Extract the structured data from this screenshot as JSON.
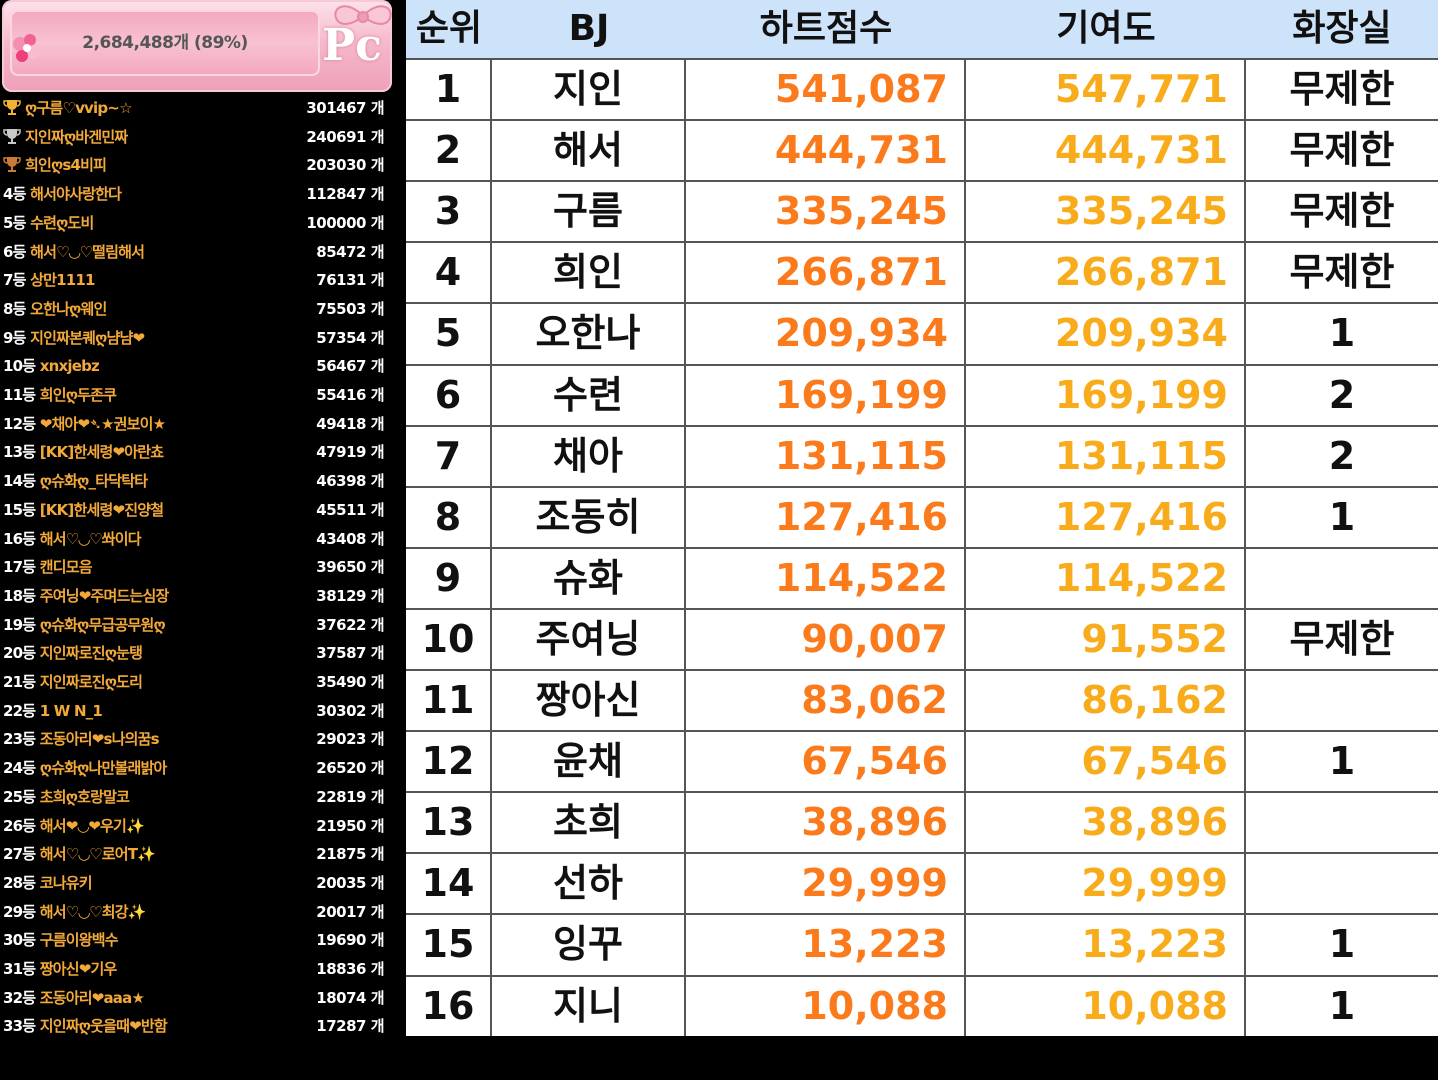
{
  "progress": {
    "text": "2,684,488개 (89%)"
  },
  "logo": {
    "text": "Pc"
  },
  "colors": {
    "heart_score": "#fa7a1c",
    "contribution": "#f8ac1c",
    "header_bg": "#cde3f9",
    "name_gold": "#f3a93a"
  },
  "ranking": [
    {
      "label": "",
      "name": "ღ구름♡vvip~☆",
      "count": "301467 개",
      "trophy": "gold"
    },
    {
      "label": "",
      "name": "지인짜ღ바겐민짜",
      "count": "240691 개",
      "trophy": "silver"
    },
    {
      "label": "",
      "name": "희인ღs4비피",
      "count": "203030 개",
      "trophy": "bronze"
    },
    {
      "label": "4등",
      "name": "해서야사랑한다",
      "count": "112847 개"
    },
    {
      "label": "5등",
      "name": "수련ღ도비",
      "count": "100000 개"
    },
    {
      "label": "6등",
      "name": "해서♡◡♡떨림해서",
      "count": "85472 개"
    },
    {
      "label": "7등",
      "name": "상만1111",
      "count": "76131 개"
    },
    {
      "label": "8등",
      "name": "오한나ღ웨인",
      "count": "75503 개"
    },
    {
      "label": "9등",
      "name": "지인짜본퀘ღ냠냠❤",
      "count": "57354 개"
    },
    {
      "label": "10등",
      "name": "xnxjebz",
      "count": "56467 개"
    },
    {
      "label": "11등",
      "name": "희인ღ두존쿠",
      "count": "55416 개"
    },
    {
      "label": "12등",
      "name": "❤채아❤➴★권보이★",
      "count": "49418 개"
    },
    {
      "label": "13등",
      "name": "[KK]한세령❤아란쵸",
      "count": "47919 개"
    },
    {
      "label": "14등",
      "name": "ღ슈화ღ_타닥탁타",
      "count": "46398 개"
    },
    {
      "label": "15등",
      "name": "[KK]한세령❤진양철",
      "count": "45511 개"
    },
    {
      "label": "16등",
      "name": "해서♡◡♡쏴이다",
      "count": "43408 개"
    },
    {
      "label": "17등",
      "name": "캔디모음",
      "count": "39650 개"
    },
    {
      "label": "18등",
      "name": "주여닝❤주며드는심장",
      "count": "38129 개"
    },
    {
      "label": "19등",
      "name": "ღ슈화ღ무급공무원ღ",
      "count": "37622 개"
    },
    {
      "label": "20등",
      "name": "지인짜로진ღ눈탱",
      "count": "37587 개"
    },
    {
      "label": "21등",
      "name": "지인짜로진ღ도리",
      "count": "35490 개"
    },
    {
      "label": "22등",
      "name": "1  W N_1",
      "count": "30302 개"
    },
    {
      "label": "23등",
      "name": "조동아리❤s나의꿈s",
      "count": "29023 개"
    },
    {
      "label": "24등",
      "name": "ღ슈화ღ나만볼래밝아",
      "count": "26520 개"
    },
    {
      "label": "25등",
      "name": "초희ღ호랑말코",
      "count": "22819 개"
    },
    {
      "label": "26등",
      "name": "해서❤◡❤우기✨",
      "count": "21950 개"
    },
    {
      "label": "27등",
      "name": "해서♡◡♡로어T✨",
      "count": "21875 개"
    },
    {
      "label": "28등",
      "name": "코나유키",
      "count": "20035 개"
    },
    {
      "label": "29등",
      "name": "해서♡◡♡최강✨",
      "count": "20017 개"
    },
    {
      "label": "30등",
      "name": "구름이왕백수",
      "count": "19690 개"
    },
    {
      "label": "31등",
      "name": "짱아신❤기우",
      "count": "18836 개"
    },
    {
      "label": "32등",
      "name": "조동아리❤aaa★",
      "count": "18074 개"
    },
    {
      "label": "33등",
      "name": "지인짜ღ웃을때❤반함",
      "count": "17287 개"
    }
  ],
  "table": {
    "headers": [
      "순위",
      "BJ",
      "하트점수",
      "기여도",
      "화장실"
    ],
    "rows": [
      {
        "rank": "1",
        "bj": "지인",
        "heart": "541,087",
        "contrib": "547,771",
        "toilet": "무제한"
      },
      {
        "rank": "2",
        "bj": "해서",
        "heart": "444,731",
        "contrib": "444,731",
        "toilet": "무제한"
      },
      {
        "rank": "3",
        "bj": "구름",
        "heart": "335,245",
        "contrib": "335,245",
        "toilet": "무제한"
      },
      {
        "rank": "4",
        "bj": "희인",
        "heart": "266,871",
        "contrib": "266,871",
        "toilet": "무제한"
      },
      {
        "rank": "5",
        "bj": "오한나",
        "heart": "209,934",
        "contrib": "209,934",
        "toilet": "1"
      },
      {
        "rank": "6",
        "bj": "수련",
        "heart": "169,199",
        "contrib": "169,199",
        "toilet": "2"
      },
      {
        "rank": "7",
        "bj": "채아",
        "heart": "131,115",
        "contrib": "131,115",
        "toilet": "2"
      },
      {
        "rank": "8",
        "bj": "조동히",
        "heart": "127,416",
        "contrib": "127,416",
        "toilet": "1"
      },
      {
        "rank": "9",
        "bj": "슈화",
        "heart": "114,522",
        "contrib": "114,522",
        "toilet": ""
      },
      {
        "rank": "10",
        "bj": "주여닝",
        "heart": "90,007",
        "contrib": "91,552",
        "toilet": "무제한"
      },
      {
        "rank": "11",
        "bj": "짱아신",
        "heart": "83,062",
        "contrib": "86,162",
        "toilet": ""
      },
      {
        "rank": "12",
        "bj": "윤채",
        "heart": "67,546",
        "contrib": "67,546",
        "toilet": "1"
      },
      {
        "rank": "13",
        "bj": "초희",
        "heart": "38,896",
        "contrib": "38,896",
        "toilet": ""
      },
      {
        "rank": "14",
        "bj": "선하",
        "heart": "29,999",
        "contrib": "29,999",
        "toilet": ""
      },
      {
        "rank": "15",
        "bj": "잉꾸",
        "heart": "13,223",
        "contrib": "13,223",
        "toilet": "1"
      },
      {
        "rank": "16",
        "bj": "지니",
        "heart": "10,088",
        "contrib": "10,088",
        "toilet": "1"
      }
    ]
  }
}
